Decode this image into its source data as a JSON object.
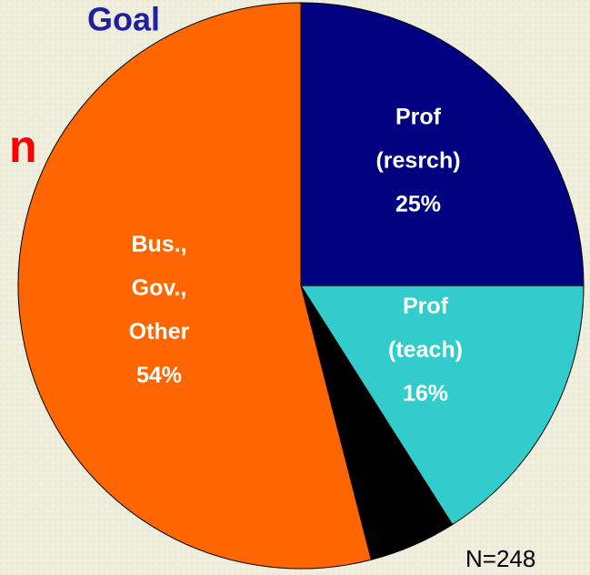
{
  "heading": "Goal",
  "side_text": "n",
  "chart_data": {
    "type": "pie",
    "categories": [
      [
        "Prof",
        "(resrch)"
      ],
      [
        "Prof",
        "(teach)"
      ],
      null,
      [
        "Bus.,",
        "Gov.,",
        "Other"
      ]
    ],
    "values": [
      25,
      16,
      5,
      54
    ],
    "value_labels": [
      "25%",
      "16%",
      null,
      "54%"
    ],
    "colors": [
      "#000080",
      "#33cccc",
      "#000000",
      "#ff6600"
    ],
    "start_angle": 0,
    "direction": "clockwise",
    "note": "N=248"
  }
}
